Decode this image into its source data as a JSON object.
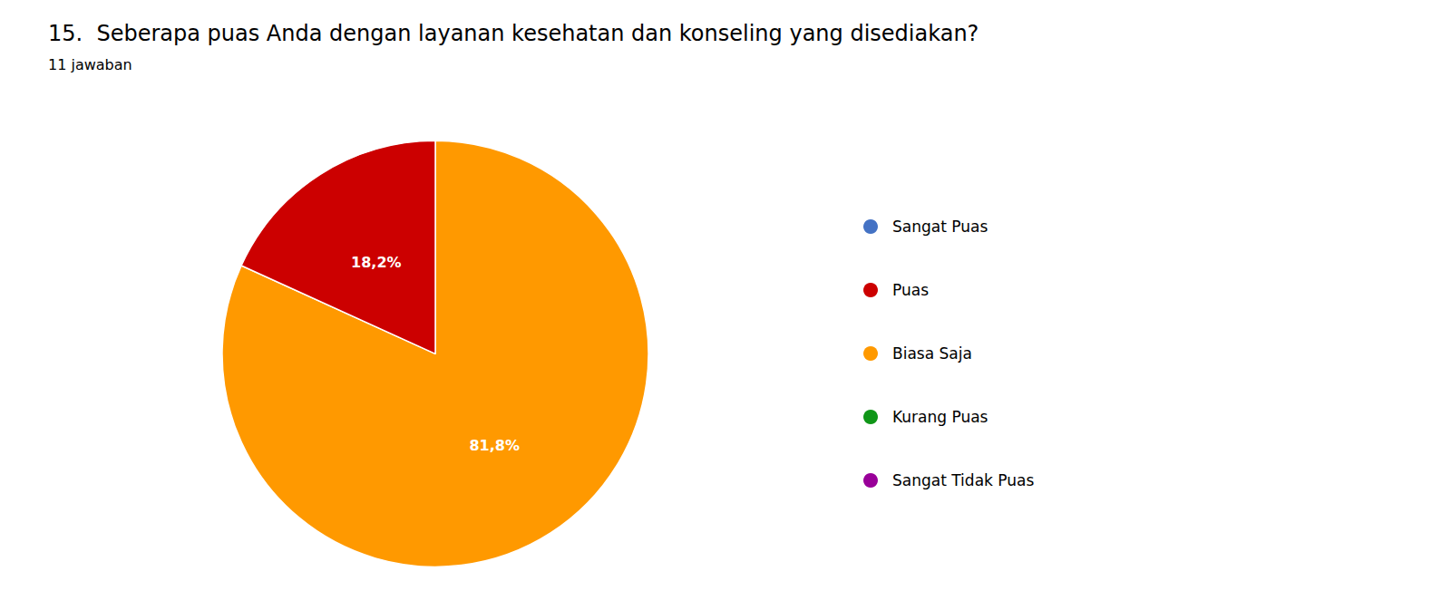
{
  "chart_data": {
    "type": "pie",
    "title": "15.  Seberapa puas Anda dengan layanan kesehatan dan konseling yang disediakan?",
    "subtitle": "11 jawaban",
    "categories": [
      "Biasa Saja",
      "Puas"
    ],
    "values": [
      81.8,
      18.2
    ],
    "value_labels": [
      "81,8%",
      "18,2%"
    ],
    "colors": [
      "#FF9900",
      "#CC0000"
    ],
    "data_labels": true,
    "legend": "right",
    "legend_items": [
      {
        "label": "Sangat Puas",
        "color": "#4472C4"
      },
      {
        "label": "Puas",
        "color": "#CC0000"
      },
      {
        "label": "Biasa Saja",
        "color": "#FF9900"
      },
      {
        "label": "Kurang Puas",
        "color": "#109618"
      },
      {
        "label": "Sangat Tidak Puas",
        "color": "#990099"
      }
    ]
  }
}
